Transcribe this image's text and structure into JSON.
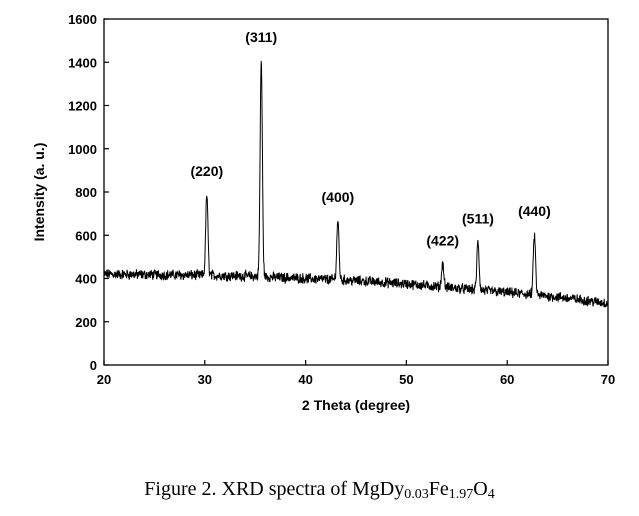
{
  "chart_data": {
    "type": "line",
    "xlabel": "2 Theta (degree)",
    "ylabel": "Intensity (a. u.)",
    "xlim": [
      20,
      70
    ],
    "ylim": [
      0,
      1600
    ],
    "xticks": [
      "20",
      "30",
      "40",
      "50",
      "60",
      "70"
    ],
    "yticks": [
      "0",
      "200",
      "400",
      "600",
      "800",
      "1000",
      "1200",
      "1400",
      "1600"
    ],
    "grid": false,
    "legend": "none",
    "line_color": "#000000",
    "noise_amplitude": 20,
    "baseline": {
      "x": [
        20,
        30,
        35,
        40,
        45,
        50,
        55,
        60,
        65,
        70
      ],
      "y": [
        420,
        415,
        410,
        400,
        390,
        375,
        355,
        335,
        315,
        285
      ]
    },
    "peaks": [
      {
        "label": "(220)",
        "x": 30.2,
        "y": 790
      },
      {
        "label": "(311)",
        "x": 35.6,
        "y": 1410
      },
      {
        "label": "(400)",
        "x": 43.2,
        "y": 670
      },
      {
        "label": "(422)",
        "x": 53.6,
        "y": 470
      },
      {
        "label": "(511)",
        "x": 57.1,
        "y": 570
      },
      {
        "label": "(440)",
        "x": 62.7,
        "y": 605
      }
    ]
  },
  "caption": {
    "prefix": "Figure 2. XRD spectra of MgDy",
    "sub1": "0.03",
    "mid": "Fe",
    "sub2": "1.97",
    "after": "O",
    "sub3": "4"
  }
}
